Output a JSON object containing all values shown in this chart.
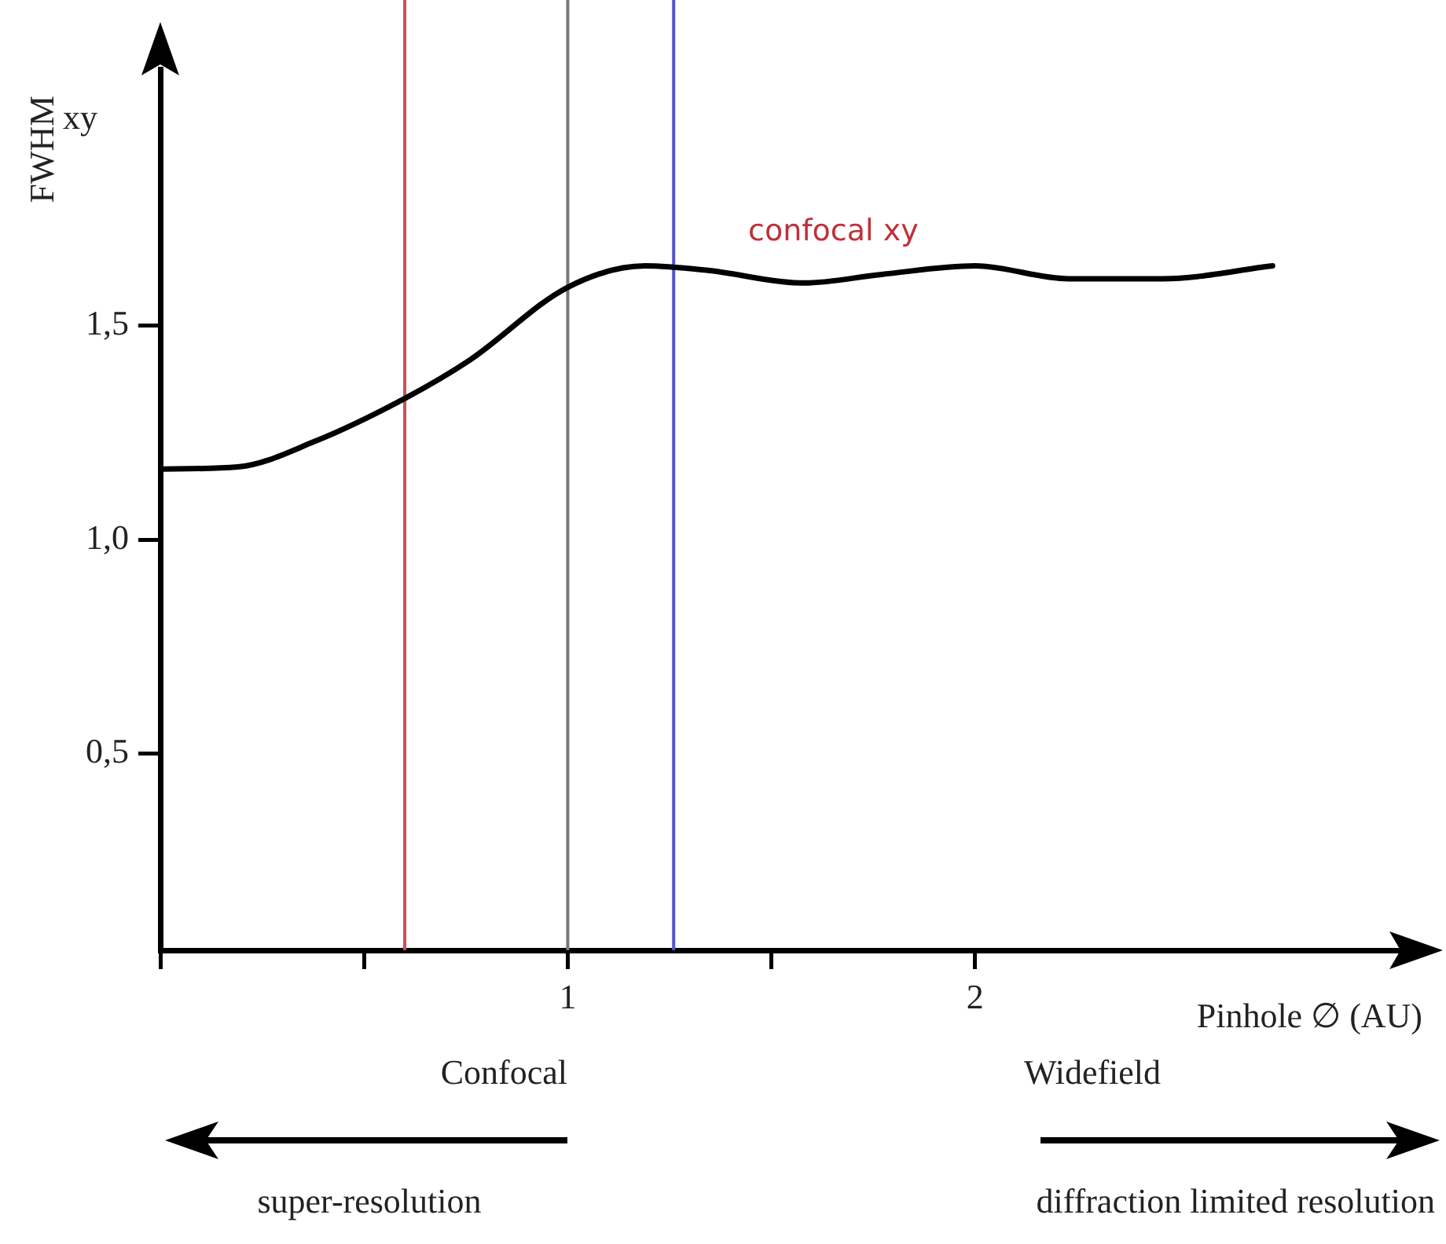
{
  "chart_data": {
    "type": "line",
    "ylabel": "FWHM",
    "xlabel": "Pinhole ∅ (AU)",
    "xlim": [
      0,
      3.04
    ],
    "ylim": [
      0.04,
      2.1
    ],
    "xticks": [
      {
        "value": 0,
        "label": null
      },
      {
        "value": 0.5,
        "label": null
      },
      1,
      {
        "value": 1.5,
        "label": null
      },
      2
    ],
    "yticks": [
      {
        "value": 0.5,
        "label": "0,5"
      },
      {
        "value": 1,
        "label": "1,0"
      },
      {
        "value": 1.5,
        "label": "1,5"
      }
    ],
    "grid": false,
    "legend": false,
    "marker": "none",
    "line_style": "solid",
    "series": [
      {
        "color": "#000000",
        "x": [
          0,
          0.19,
          0.38,
          0.6,
          0.76,
          1.0,
          1.19,
          1.34,
          1.58,
          1.77,
          2.0,
          2.23,
          2.46,
          2.73
        ],
        "values": [
          1.165,
          1.17,
          1.23,
          1.33,
          1.42,
          1.59,
          1.64,
          1.63,
          1.6,
          1.62,
          1.64,
          1.61,
          1.61,
          1.64
        ]
      }
    ],
    "ref_lines": [
      {
        "axis": "x",
        "value": 0.6,
        "color": "#c8505a"
      },
      {
        "axis": "x",
        "value": 1.0,
        "color": "#777777"
      },
      {
        "axis": "x",
        "value": 1.26,
        "color": "#5555cc"
      }
    ],
    "annotations": [
      "xy",
      "confocal xy",
      "Confocal",
      "Widefield",
      "super-resolution",
      "diffraction limited resolution"
    ]
  }
}
